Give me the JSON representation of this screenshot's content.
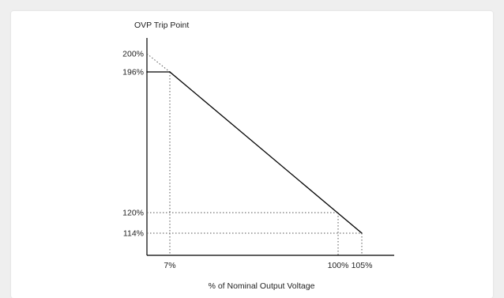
{
  "chart_data": {
    "type": "line",
    "title": "",
    "xlabel": "% of Nominal Output Voltage",
    "ylabel": "OVP Trip Point",
    "y_ticks": [
      {
        "value": 200,
        "label": "200%"
      },
      {
        "value": 196,
        "label": "196%"
      },
      {
        "value": 120,
        "label": "120%"
      },
      {
        "value": 114,
        "label": "114%"
      }
    ],
    "x_ticks": [
      {
        "value": 7,
        "label": "7%"
      },
      {
        "value": 100,
        "label": "100%"
      },
      {
        "value": 105,
        "label": "105%"
      }
    ],
    "series": [
      {
        "x": [
          0,
          7,
          105
        ],
        "y": [
          196,
          196,
          114
        ]
      }
    ],
    "extrapolation": {
      "x": [
        0,
        7
      ],
      "y": [
        200,
        196
      ]
    },
    "guides": [
      {
        "x": 7,
        "y": 196
      },
      {
        "x": 100,
        "y": 120
      },
      {
        "x": 105,
        "y": 114
      }
    ],
    "grid": false,
    "colors": {
      "line": "#000000",
      "guide": "#555555",
      "background": "#ffffff"
    }
  }
}
